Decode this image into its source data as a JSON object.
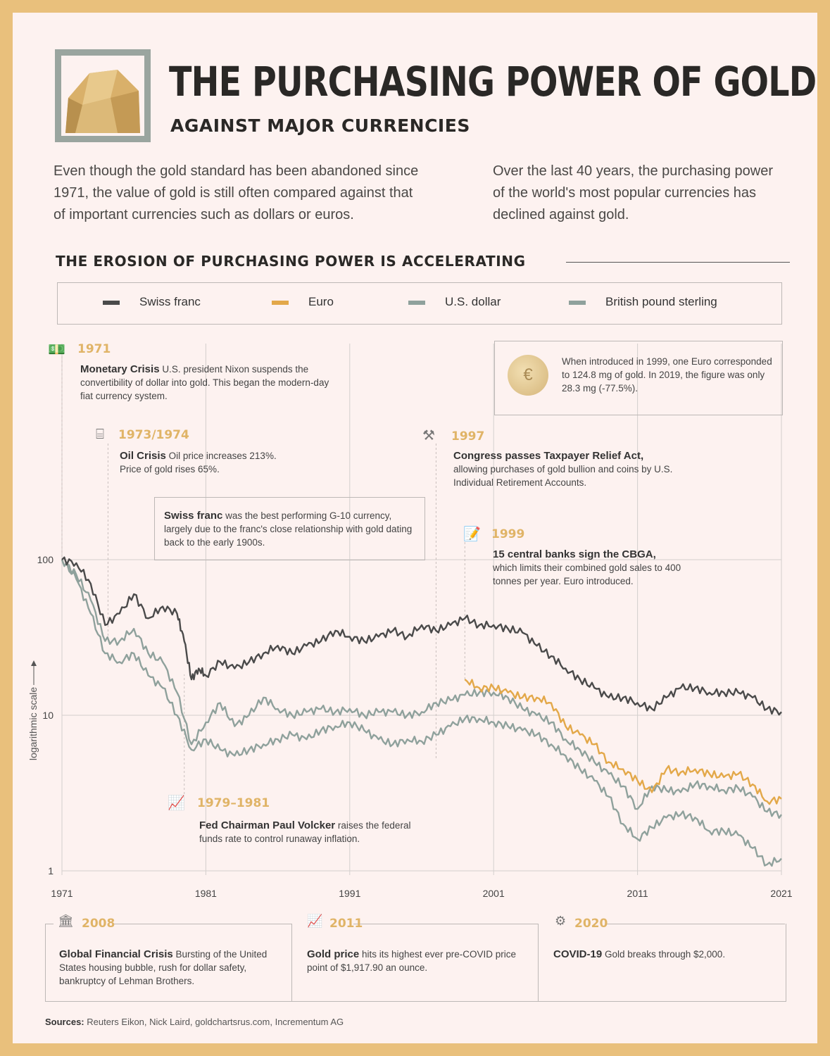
{
  "header": {
    "title": "THE PURCHASING POWER OF GOLD",
    "subtitle": "AGAINST MAJOR CURRENCIES",
    "intro_left": "Even though the gold standard has been abandoned since 1971, the value of gold is still often compared against that of important currencies such as dollars or euros.",
    "intro_right": "Over the last 40 years, the purchasing power of the world's most popular currencies has declined against gold."
  },
  "section_title": "THE EROSION OF PURCHASING POWER IS ACCELERATING",
  "legend": [
    {
      "label": "Swiss franc",
      "color": "#4a4a4a"
    },
    {
      "label": "Euro",
      "color": "#e3a849"
    },
    {
      "label": "U.S. dollar",
      "color": "#8fa19c"
    },
    {
      "label": "British pound sterling",
      "color": "#8fa19c"
    }
  ],
  "annotations": {
    "a1971": {
      "year": "1971",
      "head": "Monetary Crisis",
      "text": "U.S. president Nixon suspends the convertibility of dollar into gold. This began the modern-day fiat currency system."
    },
    "a1973": {
      "year": "1973/1974",
      "head": "Oil Crisis",
      "text": "Oil price increases 213%. Price of gold rises 65%."
    },
    "swiss": {
      "head": "Swiss franc",
      "text": "was the best performing G-10 currency, largely due to the franc's close relationship with gold dating back to the early 1900s."
    },
    "a1997": {
      "year": "1997",
      "head": "Congress passes Taxpayer Relief Act,",
      "text": "allowing purchases of gold bullion and coins by U.S. Individual Retirement Accounts."
    },
    "a1999": {
      "year": "1999",
      "head": "15 central banks sign the CBGA,",
      "text": "which limits their combined gold sales to 400 tonnes per year. Euro introduced."
    },
    "euro_box": {
      "text": "When introduced in 1999, one Euro corresponded to 124.8 mg of gold. In 2019, the figure was only 28.3 mg (-77.5%)."
    },
    "a1979": {
      "year": "1979–1981",
      "head": "Fed Chairman Paul Volcker",
      "text": "raises the federal funds rate to control runaway inflation."
    }
  },
  "bottom": [
    {
      "year": "2008",
      "head": "Global Financial Crisis",
      "text": "Bursting of the United States housing bubble, rush for dollar safety, bankruptcy of Lehman Brothers.",
      "icon": "bank-icon"
    },
    {
      "year": "2011",
      "head": "Gold price",
      "text": "hits its highest ever pre-COVID price point of $1,917.90 an ounce.",
      "icon": "chart-up-icon"
    },
    {
      "year": "2020",
      "head": "COVID-19",
      "text": "Gold breaks through $2,000.",
      "icon": "virus-icon"
    }
  ],
  "sources_label": "Sources:",
  "sources_text": "Reuters Eikon, Nick Laird, goldchartsrus.com, Incrementum AG",
  "chart_data": {
    "type": "line",
    "ylabel": "logarithmic scale",
    "yscale": "log",
    "ylim": [
      1,
      100
    ],
    "yticks": [
      "100",
      "10",
      "1"
    ],
    "xlim": [
      1971,
      2021
    ],
    "xticks": [
      "1971",
      "1981",
      "1991",
      "2001",
      "2011",
      "2021"
    ],
    "grid": true,
    "legend_position": "top",
    "series": [
      {
        "name": "Swiss franc",
        "color": "#4a4a4a",
        "x": [
          1971,
          1972,
          1973,
          1974,
          1975,
          1976,
          1977,
          1978,
          1979,
          1979.5,
          1980,
          1980.5,
          1981,
          1982,
          1983,
          1984,
          1985,
          1986,
          1987,
          1988,
          1989,
          1990,
          1991,
          1992,
          1993,
          1994,
          1995,
          1996,
          1997,
          1998,
          1999,
          2000,
          2001,
          2002,
          2003,
          2004,
          2005,
          2006,
          2007,
          2008,
          2009,
          2010,
          2011,
          2012,
          2013,
          2014,
          2015,
          2016,
          2017,
          2018,
          2019,
          2020,
          2021
        ],
        "values": [
          100,
          95,
          70,
          38,
          45,
          60,
          42,
          50,
          45,
          30,
          17,
          20,
          18,
          22,
          20,
          22,
          25,
          28,
          25,
          28,
          30,
          35,
          32,
          30,
          32,
          35,
          32,
          38,
          35,
          38,
          42,
          38,
          38,
          36,
          34,
          28,
          24,
          20,
          17,
          15,
          13,
          13,
          12,
          11,
          13,
          15,
          15,
          14,
          14,
          14,
          13,
          11,
          10.5
        ]
      },
      {
        "name": "Euro",
        "color": "#e3a849",
        "x": [
          1999,
          2000,
          2001,
          2002,
          2003,
          2004,
          2005,
          2006,
          2007,
          2008,
          2009,
          2010,
          2011,
          2012,
          2013,
          2014,
          2015,
          2016,
          2017,
          2018,
          2019,
          2020,
          2021
        ],
        "values": [
          17,
          15,
          15,
          14,
          13,
          13,
          12,
          8.5,
          7.5,
          6.5,
          5,
          4.5,
          3.8,
          3.2,
          4.5,
          4.3,
          4.5,
          4.2,
          4.0,
          4.2,
          3.6,
          2.8,
          2.9
        ]
      },
      {
        "name": "U.S. dollar",
        "color": "#8fa19c",
        "x": [
          1971,
          1972,
          1973,
          1974,
          1975,
          1976,
          1977,
          1978,
          1979,
          1980,
          1981,
          1982,
          1983,
          1984,
          1985,
          1986,
          1987,
          1988,
          1989,
          1990,
          1991,
          1992,
          1993,
          1994,
          1995,
          1996,
          1997,
          1998,
          1999,
          2000,
          2001,
          2002,
          2003,
          2004,
          2005,
          2006,
          2007,
          2008,
          2009,
          2010,
          2011,
          2012,
          2013,
          2014,
          2015,
          2016,
          2017,
          2018,
          2019,
          2020,
          2021
        ],
        "values": [
          100,
          80,
          55,
          30,
          30,
          36,
          25,
          22,
          14,
          6.5,
          9,
          12,
          8.5,
          10,
          13,
          11,
          10,
          10.5,
          11,
          10.5,
          11,
          10,
          10.5,
          10.5,
          10,
          10.5,
          12,
          12.5,
          13.5,
          14,
          14,
          13,
          11,
          10,
          9,
          7,
          6,
          5,
          4.2,
          3.5,
          2.5,
          3.5,
          3.3,
          3.2,
          3.6,
          3.5,
          3.3,
          3.4,
          3.0,
          2.4,
          2.3
        ]
      },
      {
        "name": "British pound sterling",
        "color": "#8fa19c",
        "x": [
          1971,
          1972,
          1973,
          1974,
          1975,
          1976,
          1977,
          1978,
          1979,
          1980,
          1981,
          1982,
          1983,
          1984,
          1985,
          1986,
          1987,
          1988,
          1989,
          1990,
          1991,
          1992,
          1993,
          1994,
          1995,
          1996,
          1997,
          1998,
          1999,
          2000,
          2001,
          2002,
          2003,
          2004,
          2005,
          2006,
          2007,
          2008,
          2009,
          2010,
          2011,
          2012,
          2013,
          2014,
          2015,
          2016,
          2017,
          2018,
          2019,
          2020,
          2021
        ],
        "values": [
          100,
          75,
          45,
          25,
          22,
          25,
          18,
          15,
          10,
          6,
          7,
          6,
          5.5,
          6,
          6.5,
          7,
          7.5,
          7,
          8,
          8.5,
          9,
          8,
          7,
          6.5,
          7,
          6.8,
          7.5,
          8.5,
          9.5,
          9.5,
          9,
          8.5,
          8,
          7.5,
          6.5,
          5.5,
          4.5,
          3.8,
          3.0,
          2.0,
          1.6,
          1.9,
          2.2,
          2.3,
          2.2,
          1.8,
          1.8,
          1.7,
          1.4,
          1.1,
          1.2
        ]
      }
    ]
  }
}
